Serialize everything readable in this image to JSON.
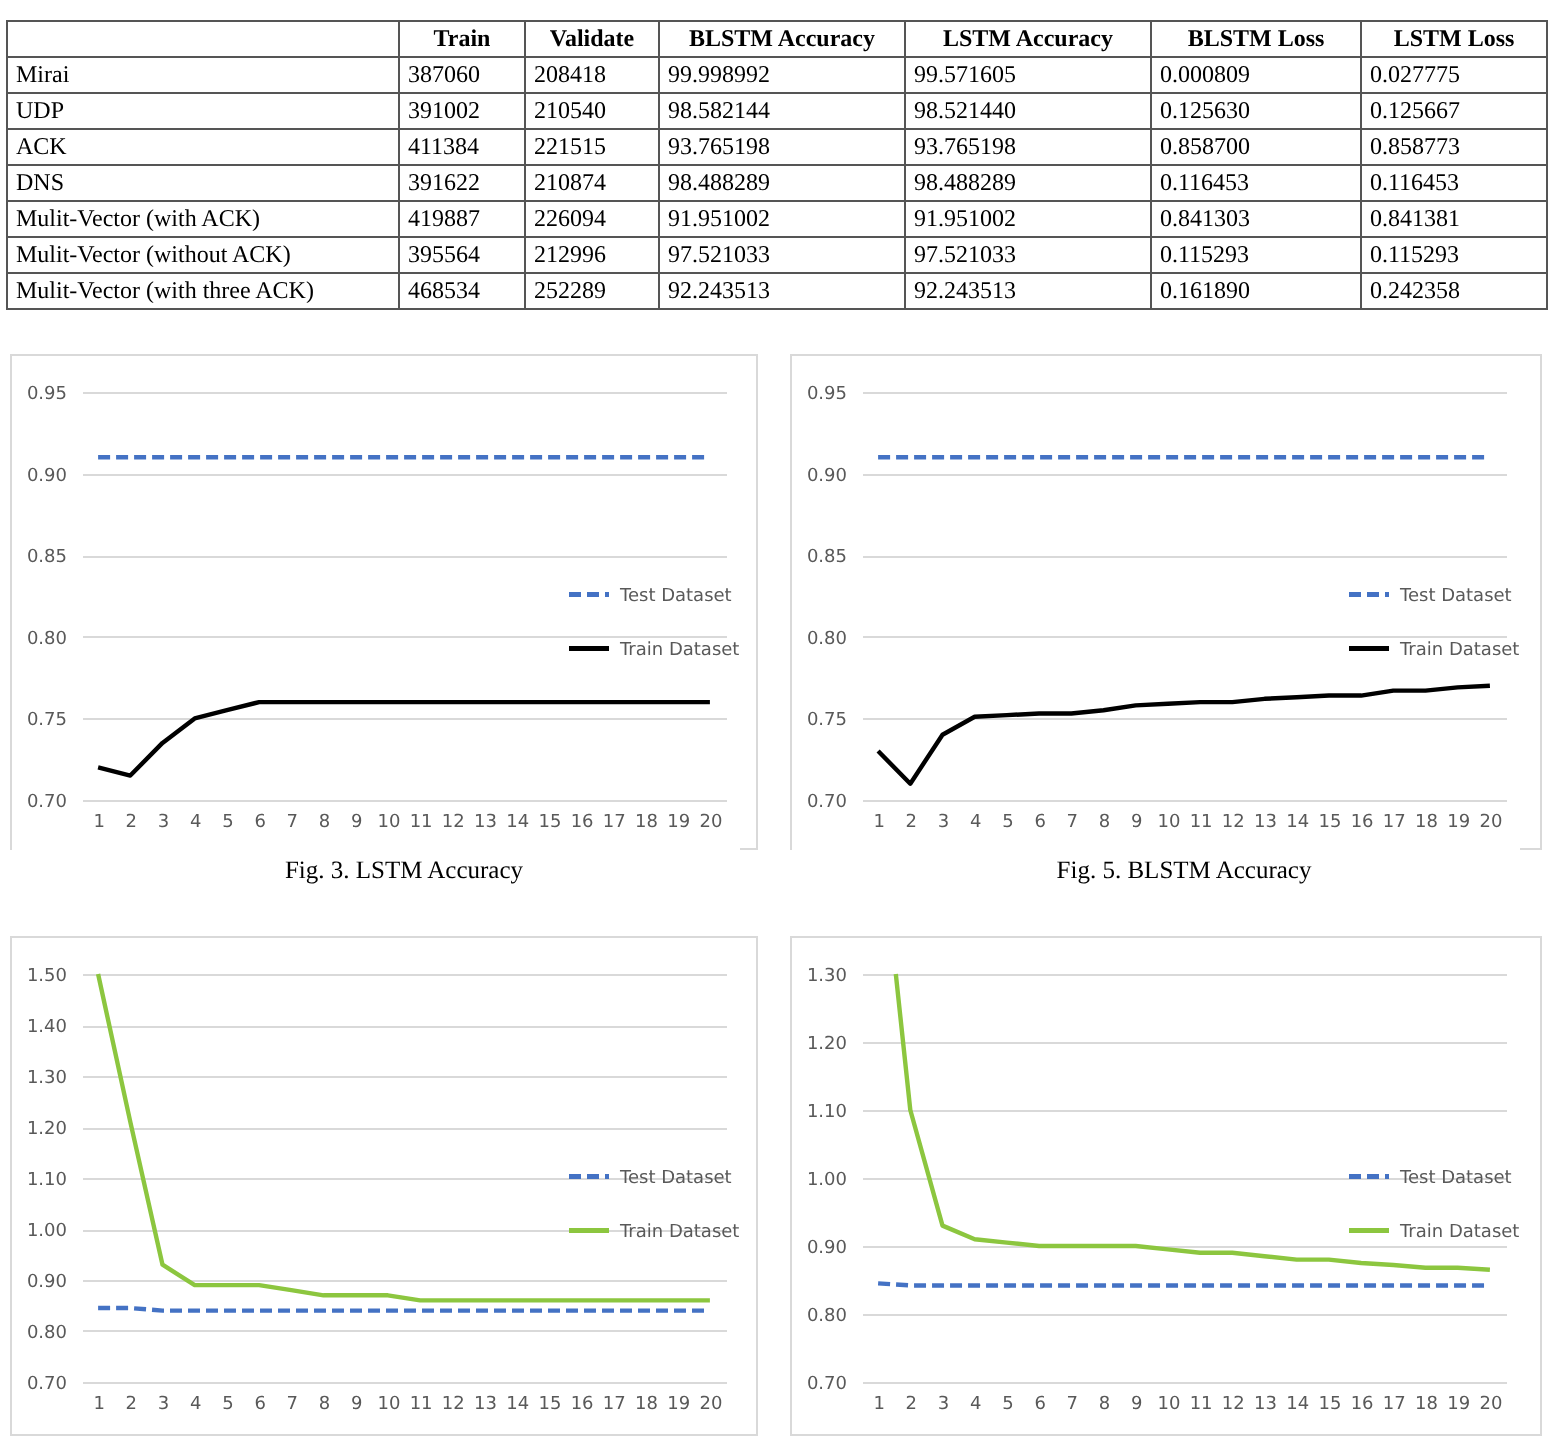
{
  "chart_data": [
    {
      "type": "other",
      "categories": [
        "Train",
        "Validate",
        "BLSTM Accuracy",
        "LSTM Accuracy",
        "BLSTM Loss",
        "LSTM Loss"
      ],
      "y_categories": [
        "Mirai",
        "UDP",
        "ACK",
        "DNS",
        "Mulit-Vector (with ACK)",
        "Mulit-Vector (without ACK)",
        "Mulit-Vector (with three ACK)"
      ],
      "cell_labels": [
        [
          "387060",
          "208418",
          "99.998992",
          "99.571605",
          "0.000809",
          "0.027775"
        ],
        [
          "391002",
          "210540",
          "98.582144",
          "98.521440",
          "0.125630",
          "0.125667"
        ],
        [
          "411384",
          "221515",
          "93.765198",
          "93.765198",
          "0.858700",
          "0.858773"
        ],
        [
          "391622",
          "210874",
          "98.488289",
          "98.488289",
          "0.116453",
          "0.116453"
        ],
        [
          "419887",
          "226094",
          "91.951002",
          "91.951002",
          "0.841303",
          "0.841381"
        ],
        [
          "395564",
          "212996",
          "97.521033",
          "97.521033",
          "0.115293",
          "0.115293"
        ],
        [
          "468534",
          "252289",
          "92.243513",
          "92.243513",
          "0.161890",
          "0.242358"
        ]
      ]
    },
    {
      "type": "line",
      "title": "Fig. 3. LSTM Accuracy",
      "x": [
        1,
        2,
        3,
        4,
        5,
        6,
        7,
        8,
        9,
        10,
        11,
        12,
        13,
        14,
        15,
        16,
        17,
        18,
        19,
        20
      ],
      "xlim": [
        0.5,
        20.5
      ],
      "xticks": [
        1,
        2,
        3,
        4,
        5,
        6,
        7,
        8,
        9,
        10,
        11,
        12,
        13,
        14,
        15,
        16,
        17,
        18,
        19,
        20
      ],
      "ylim": [
        0.7,
        0.95
      ],
      "yticks": [
        {
          "value": 0.7,
          "label": "0.70"
        },
        {
          "value": 0.75,
          "label": "0.75"
        },
        {
          "value": 0.8,
          "label": "0.80"
        },
        {
          "value": 0.85,
          "label": "0.85"
        },
        {
          "value": 0.9,
          "label": "0.90"
        },
        {
          "value": 0.95,
          "label": "0.95"
        }
      ],
      "grid": "y",
      "legend": "right",
      "marker": "none",
      "series": [
        {
          "name": "Test Dataset",
          "color": "#4472c4",
          "line_style": "dashed",
          "values": [
            0.91,
            0.91,
            0.91,
            0.91,
            0.91,
            0.91,
            0.91,
            0.91,
            0.91,
            0.91,
            0.91,
            0.91,
            0.91,
            0.91,
            0.91,
            0.91,
            0.91,
            0.91,
            0.91,
            0.91
          ]
        },
        {
          "name": "Train Dataset",
          "color": "#000000",
          "line_style": "solid",
          "values": [
            0.72,
            0.715,
            0.735,
            0.75,
            0.755,
            0.76,
            0.76,
            0.76,
            0.76,
            0.76,
            0.76,
            0.76,
            0.76,
            0.76,
            0.76,
            0.76,
            0.76,
            0.76,
            0.76,
            0.76
          ]
        }
      ]
    },
    {
      "type": "line",
      "title": "Fig. 5. BLSTM Accuracy",
      "x": [
        1,
        2,
        3,
        4,
        5,
        6,
        7,
        8,
        9,
        10,
        11,
        12,
        13,
        14,
        15,
        16,
        17,
        18,
        19,
        20
      ],
      "xlim": [
        0.5,
        20.5
      ],
      "xticks": [
        1,
        2,
        3,
        4,
        5,
        6,
        7,
        8,
        9,
        10,
        11,
        12,
        13,
        14,
        15,
        16,
        17,
        18,
        19,
        20
      ],
      "ylim": [
        0.7,
        0.95
      ],
      "yticks": [
        {
          "value": 0.7,
          "label": "0.70"
        },
        {
          "value": 0.75,
          "label": "0.75"
        },
        {
          "value": 0.8,
          "label": "0.80"
        },
        {
          "value": 0.85,
          "label": "0.85"
        },
        {
          "value": 0.9,
          "label": "0.90"
        },
        {
          "value": 0.95,
          "label": "0.95"
        }
      ],
      "grid": "y",
      "legend": "right",
      "marker": "none",
      "series": [
        {
          "name": "Test Dataset",
          "color": "#4472c4",
          "line_style": "dashed",
          "values": [
            0.91,
            0.91,
            0.91,
            0.91,
            0.91,
            0.91,
            0.91,
            0.91,
            0.91,
            0.91,
            0.91,
            0.91,
            0.91,
            0.91,
            0.91,
            0.91,
            0.91,
            0.91,
            0.91,
            0.91
          ]
        },
        {
          "name": "Train Dataset",
          "color": "#000000",
          "line_style": "solid",
          "values": [
            0.73,
            0.71,
            0.74,
            0.751,
            0.752,
            0.753,
            0.753,
            0.755,
            0.758,
            0.759,
            0.76,
            0.76,
            0.762,
            0.763,
            0.764,
            0.764,
            0.767,
            0.767,
            0.769,
            0.77
          ]
        }
      ]
    },
    {
      "type": "line",
      "x": [
        1,
        2,
        3,
        4,
        5,
        6,
        7,
        8,
        9,
        10,
        11,
        12,
        13,
        14,
        15,
        16,
        17,
        18,
        19,
        20
      ],
      "xlim": [
        0.5,
        20.5
      ],
      "xticks": [
        1,
        2,
        3,
        4,
        5,
        6,
        7,
        8,
        9,
        10,
        11,
        12,
        13,
        14,
        15,
        16,
        17,
        18,
        19,
        20
      ],
      "ylim": [
        0.7,
        1.5
      ],
      "yticks": [
        {
          "value": 0.7,
          "label": "0.70"
        },
        {
          "value": 0.8,
          "label": "0.80"
        },
        {
          "value": 0.9,
          "label": "0.90"
        },
        {
          "value": 1.0,
          "label": "1.00"
        },
        {
          "value": 1.1,
          "label": "1.10"
        },
        {
          "value": 1.2,
          "label": "1.20"
        },
        {
          "value": 1.3,
          "label": "1.30"
        },
        {
          "value": 1.4,
          "label": "1.40"
        },
        {
          "value": 1.5,
          "label": "1.50"
        }
      ],
      "grid": "y",
      "legend": "right",
      "marker": "none",
      "series": [
        {
          "name": "Test Dataset",
          "color": "#4472c4",
          "line_style": "dashed",
          "values": [
            0.845,
            0.845,
            0.84,
            0.84,
            0.84,
            0.84,
            0.84,
            0.84,
            0.84,
            0.84,
            0.84,
            0.84,
            0.84,
            0.84,
            0.84,
            0.84,
            0.84,
            0.84,
            0.84,
            0.84
          ]
        },
        {
          "name": "Train Dataset",
          "color": "#8cc63f",
          "line_style": "solid",
          "values": [
            1.5,
            1.21,
            0.93,
            0.89,
            0.89,
            0.89,
            0.88,
            0.87,
            0.87,
            0.87,
            0.86,
            0.86,
            0.86,
            0.86,
            0.86,
            0.86,
            0.86,
            0.86,
            0.86,
            0.86
          ]
        }
      ]
    },
    {
      "type": "line",
      "x": [
        1,
        2,
        3,
        4,
        5,
        6,
        7,
        8,
        9,
        10,
        11,
        12,
        13,
        14,
        15,
        16,
        17,
        18,
        19,
        20
      ],
      "xlim": [
        0.5,
        20.5
      ],
      "xticks": [
        1,
        2,
        3,
        4,
        5,
        6,
        7,
        8,
        9,
        10,
        11,
        12,
        13,
        14,
        15,
        16,
        17,
        18,
        19,
        20
      ],
      "ylim": [
        0.7,
        1.3
      ],
      "yticks": [
        {
          "value": 0.7,
          "label": "0.70"
        },
        {
          "value": 0.8,
          "label": "0.80"
        },
        {
          "value": 0.9,
          "label": "0.90"
        },
        {
          "value": 1.0,
          "label": "1.00"
        },
        {
          "value": 1.1,
          "label": "1.10"
        },
        {
          "value": 1.2,
          "label": "1.20"
        },
        {
          "value": 1.3,
          "label": "1.30"
        }
      ],
      "grid": "y",
      "legend": "right",
      "marker": "none",
      "series": [
        {
          "name": "Test Dataset",
          "color": "#4472c4",
          "line_style": "dashed",
          "values": [
            0.845,
            0.842,
            0.842,
            0.842,
            0.842,
            0.842,
            0.842,
            0.842,
            0.842,
            0.842,
            0.842,
            0.842,
            0.842,
            0.842,
            0.842,
            0.842,
            0.842,
            0.842,
            0.842,
            0.842
          ]
        },
        {
          "name": "Train Dataset",
          "color": "#8cc63f",
          "line_style": "solid",
          "x": [
            1.55,
            2,
            3,
            4,
            5,
            6,
            7,
            8,
            9,
            10,
            11,
            12,
            13,
            14,
            15,
            16,
            17,
            18,
            19,
            20
          ],
          "values": [
            1.3,
            1.1,
            0.93,
            0.91,
            0.905,
            0.9,
            0.9,
            0.9,
            0.9,
            0.895,
            0.89,
            0.89,
            0.885,
            0.88,
            0.88,
            0.875,
            0.872,
            0.868,
            0.868,
            0.865
          ]
        }
      ]
    }
  ]
}
